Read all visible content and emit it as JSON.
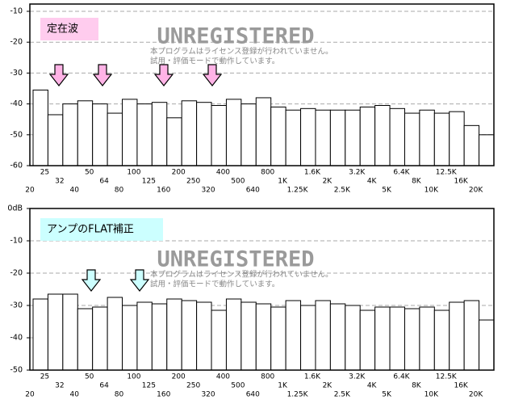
{
  "chart_data": [
    {
      "type": "bar",
      "annotation": "定在波",
      "watermark": {
        "title": "UNREGISTERED",
        "lines": [
          "本プログラムはライセンス登録が行われていません。",
          "試用・評価モードで動作しています。"
        ]
      },
      "categories": [
        "20",
        "25",
        "32",
        "40",
        "50",
        "64",
        "80",
        "100",
        "125",
        "160",
        "200",
        "250",
        "320",
        "400",
        "500",
        "640",
        "800",
        "1K",
        "1.25K",
        "1.6K",
        "2K",
        "2.5K",
        "3.2K",
        "4K",
        "5K",
        "6.4K",
        "8K",
        "10K",
        "12.5K",
        "16K",
        "20K"
      ],
      "values": [
        -35.5,
        -43.5,
        -40,
        -39,
        -40,
        -43,
        -38.5,
        -40,
        -39.5,
        -44.5,
        -39,
        -39.5,
        -40.5,
        -38.5,
        -40,
        -38,
        -41,
        -42,
        -41.5,
        -42,
        -42,
        -42,
        -41,
        -40.5,
        -41.5,
        -43,
        -42,
        -43,
        -42.5,
        -47,
        -50
      ],
      "color": "#ffffff",
      "ylim": [
        -60,
        -10
      ],
      "yticks": [
        -60,
        -50,
        -40,
        -30,
        -20,
        -10
      ],
      "grid": true
    },
    {
      "type": "bar",
      "annotation": "アンプのFLAT補正",
      "watermark": {
        "title": "UNREGISTERED",
        "lines": [
          "本プログラムはライセンス登録が行われていません。",
          "試用・評価モードで動作しています。"
        ]
      },
      "categories": [
        "20",
        "25",
        "32",
        "40",
        "50",
        "64",
        "80",
        "100",
        "125",
        "160",
        "200",
        "250",
        "320",
        "400",
        "500",
        "640",
        "800",
        "1K",
        "1.25K",
        "1.6K",
        "2K",
        "2.5K",
        "3.2K",
        "4K",
        "5K",
        "6.4K",
        "8K",
        "10K",
        "12.5K",
        "16K",
        "20K"
      ],
      "values": [
        -28,
        -26.5,
        -26.5,
        -31,
        -30.5,
        -27.5,
        -30,
        -29,
        -29.5,
        -28,
        -28.5,
        -29,
        -31.5,
        -28,
        -29,
        -29.5,
        -30.5,
        -28.5,
        -30,
        -28.5,
        -29.5,
        -30,
        -31.5,
        -30.5,
        -30.5,
        -31,
        -30.5,
        -31.5,
        -29,
        -28.5,
        -34.5
      ],
      "color": "#ffffff",
      "ylim": [
        -50,
        0
      ],
      "yticks": [
        -50,
        -40,
        -30,
        -20,
        -10,
        {
          "value": 0,
          "label": "0dB"
        }
      ],
      "grid": true
    }
  ]
}
